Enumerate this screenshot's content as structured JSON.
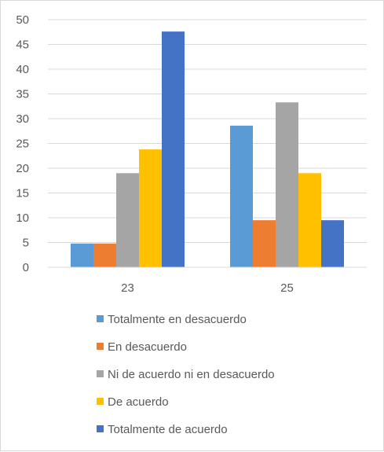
{
  "chart_data": {
    "type": "bar",
    "categories": [
      "23",
      "25"
    ],
    "series": [
      {
        "name": "Totalmente en desacuerdo",
        "color": "#5b9bd5",
        "values": [
          4.8,
          28.6
        ]
      },
      {
        "name": "En desacuerdo",
        "color": "#ed7d31",
        "values": [
          4.8,
          9.5
        ]
      },
      {
        "name": "Ni de acuerdo ni en desacuerdo",
        "color": "#a5a5a5",
        "values": [
          19.0,
          33.3
        ]
      },
      {
        "name": "De acuerdo",
        "color": "#ffc000",
        "values": [
          23.8,
          19.0
        ]
      },
      {
        "name": "Totalmente de acuerdo",
        "color": "#4472c4",
        "values": [
          47.6,
          9.5
        ]
      }
    ],
    "ylim": [
      0,
      50
    ],
    "yticks": [
      "0",
      "5",
      "10",
      "15",
      "20",
      "25",
      "30",
      "35",
      "40",
      "45",
      "50"
    ],
    "grid": true,
    "legend_position": "bottom",
    "title": "",
    "xlabel": "",
    "ylabel": ""
  }
}
